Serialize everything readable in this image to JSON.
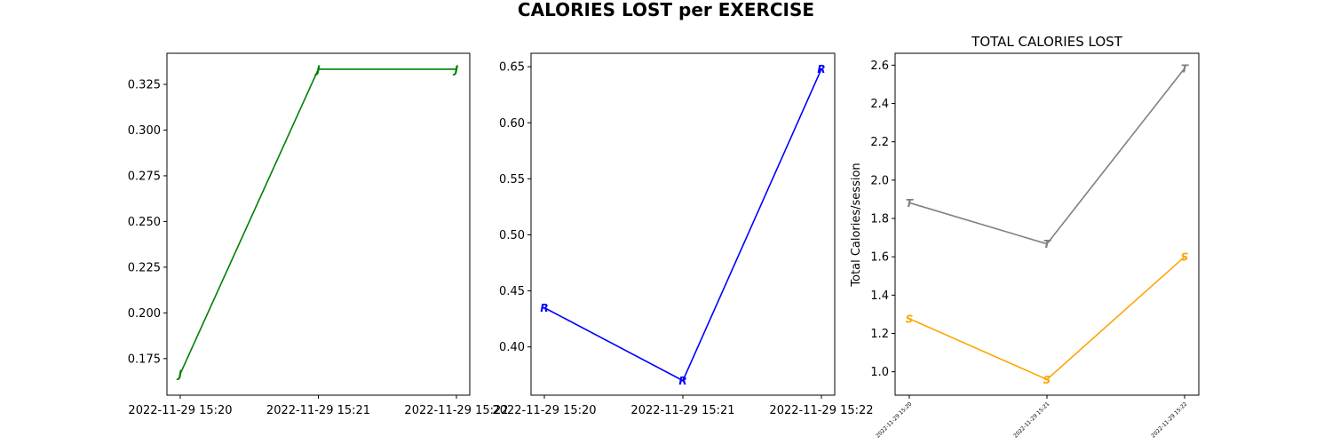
{
  "figure": {
    "suptitle": "CALORIES LOST per EXERCISE"
  },
  "chart_data": [
    {
      "type": "line",
      "title": "",
      "xlabel": "",
      "ylabel": "",
      "x": [
        "2022-11-29 15:20",
        "2022-11-29 15:21",
        "2022-11-29 15:22"
      ],
      "ylim": [
        0.155,
        0.342
      ],
      "yticks": [
        "0.175",
        "0.200",
        "0.225",
        "0.250",
        "0.275",
        "0.300",
        "0.325"
      ],
      "grid": false,
      "series": [
        {
          "marker": "J",
          "color": "#008000",
          "values": [
            0.1667,
            0.3333,
            0.3333
          ]
        }
      ]
    },
    {
      "type": "line",
      "title": "",
      "xlabel": "",
      "ylabel": "",
      "x": [
        "2022-11-29 15:20",
        "2022-11-29 15:21",
        "2022-11-29 15:22"
      ],
      "ylim": [
        0.357,
        0.662
      ],
      "yticks": [
        "0.40",
        "0.45",
        "0.50",
        "0.55",
        "0.60",
        "0.65"
      ],
      "grid": false,
      "series": [
        {
          "marker": "R",
          "color": "#0000ff",
          "values": [
            0.435,
            0.37,
            0.648
          ]
        }
      ]
    },
    {
      "type": "line",
      "title": "TOTAL CALORIES LOST",
      "xlabel": "",
      "ylabel": "Total Calories/session",
      "x": [
        "2022-11-29 15:20",
        "2022-11-29 15:21",
        "2022-11-29 15:22"
      ],
      "ylim": [
        0.878,
        2.662
      ],
      "yticks": [
        "1.0",
        "1.2",
        "1.4",
        "1.6",
        "1.8",
        "2.0",
        "2.2",
        "2.4",
        "2.6"
      ],
      "grid": false,
      "series": [
        {
          "marker": "T",
          "color": "#808080",
          "values": [
            1.882,
            1.667,
            2.583
          ]
        },
        {
          "marker": "S",
          "color": "#ffa500",
          "values": [
            1.277,
            0.96,
            1.6
          ]
        }
      ]
    }
  ]
}
